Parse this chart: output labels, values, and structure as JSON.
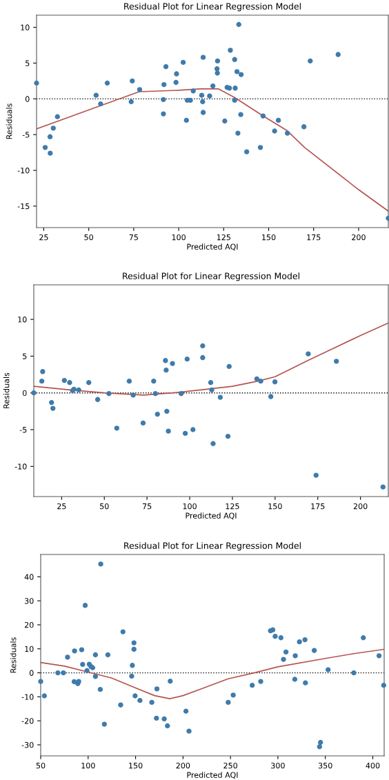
{
  "chart_data": [
    {
      "type": "scatter",
      "title": "Residual Plot for Linear Regression Model",
      "xlabel": "Predicted AQI",
      "ylabel": "Residuals",
      "xlim": [
        21,
        216.5
      ],
      "ylim": [
        -18,
        11.7
      ],
      "xticks": [
        25,
        50,
        75,
        100,
        125,
        150,
        175,
        200
      ],
      "yticks": [
        -15,
        -10,
        -5,
        0,
        5,
        10
      ],
      "ref_lines": [
        {
          "axis": "y",
          "value": 0,
          "color": "#000000",
          "line_style": "dotted"
        }
      ],
      "series": [
        {
          "marker": "circle",
          "color": "#3f7bab",
          "x": [
            21,
            25.8,
            28.6,
            28.5,
            30.3,
            32.6,
            54.1,
            56.6,
            60.3,
            74.2,
            73.6,
            78.3,
            91.8,
            92.9,
            91.5,
            91.5,
            98.5,
            98.8,
            102.5,
            104.3,
            104.8,
            106.5,
            108.1,
            113.6,
            112.8,
            113.3,
            113.6,
            117.2,
            119.0,
            121.6,
            121.3,
            121.5,
            125.6,
            126.9,
            128.2,
            128.7,
            131.1,
            131.4,
            131.1,
            132.4,
            133.4,
            134.7,
            134.5,
            132.9,
            137.8,
            145.4,
            146.9,
            153.3,
            155.4,
            160.4,
            169.6,
            173.1,
            188.6,
            216.5
          ],
          "values": [
            2.2,
            -6.8,
            -7.6,
            -5.3,
            -4.1,
            -2.5,
            0.5,
            -0.7,
            2.2,
            2.5,
            -0.4,
            1.3,
            2.0,
            4.5,
            -0.1,
            -2.1,
            2.3,
            3.5,
            5.1,
            -3.0,
            -0.2,
            -0.2,
            1.1,
            5.8,
            0.5,
            -0.4,
            -1.9,
            0.4,
            1.8,
            5.3,
            4.2,
            3.6,
            -3.1,
            1.6,
            1.5,
            6.8,
            5.5,
            1.5,
            -0.2,
            3.8,
            10.4,
            3.4,
            -2.2,
            -4.8,
            -7.4,
            -6.8,
            -2.4,
            -4.5,
            -3.0,
            -4.8,
            -3.9,
            5.3,
            6.2,
            -16.7
          ]
        },
        {
          "type": "line",
          "marker": "none",
          "color": "#b5534f",
          "x": [
            21,
            56,
            78,
            100,
            112,
            122,
            131,
            147,
            160,
            170,
            200,
            216.5
          ],
          "values": [
            -4.2,
            -1.0,
            1.0,
            1.2,
            1.4,
            1.4,
            0.2,
            -2.4,
            -4.4,
            -6.8,
            -12.7,
            -15.7
          ]
        }
      ]
    },
    {
      "type": "scatter",
      "title": "Residual Plot for Linear Regression Model",
      "xlabel": "Predicted AQI",
      "ylabel": "Residuals",
      "xlim": [
        8.7,
        216.3
      ],
      "ylim": [
        -14.1,
        14.7
      ],
      "xticks": [
        25,
        50,
        75,
        100,
        125,
        150,
        175,
        200
      ],
      "yticks": [
        -10,
        -5,
        0,
        5,
        10
      ],
      "ref_lines": [
        {
          "axis": "y",
          "value": 0,
          "color": "#000000",
          "line_style": "dotted"
        }
      ],
      "series": [
        {
          "marker": "circle",
          "color": "#3f7bab",
          "x": [
            8.7,
            13.4,
            13.9,
            19.1,
            19.9,
            26.6,
            29.7,
            31.4,
            32.2,
            35.0,
            40.9,
            46.1,
            52.7,
            57.3,
            64.6,
            66.9,
            72.7,
            78.9,
            79.9,
            81.1,
            85.8,
            86.2,
            86.6,
            87.5,
            89.9,
            95.0,
            97.4,
            98.5,
            101.9,
            107.6,
            107.6,
            112.3,
            112.9,
            113.7,
            117.9,
            123.1,
            122.4,
            139.3,
            141.6,
            147.5,
            149.9,
            169.4,
            174.0,
            185.9,
            213.2
          ],
          "values": [
            0,
            1.6,
            2.9,
            -1.3,
            -2.1,
            1.7,
            1.4,
            0.3,
            0.5,
            0.4,
            1.4,
            -0.9,
            -0.1,
            -4.8,
            1.6,
            -0.3,
            -4.1,
            1.6,
            -0.1,
            -2.9,
            4.4,
            3.1,
            -2.5,
            -5.2,
            4.0,
            -0.1,
            -5.5,
            4.6,
            -5.0,
            6.4,
            4.8,
            1.4,
            0.4,
            -6.9,
            -0.6,
            3.6,
            -5.9,
            1.9,
            1.6,
            -0.5,
            1.5,
            5.3,
            -11.2,
            4.3,
            -12.8
          ]
        },
        {
          "type": "line",
          "marker": "none",
          "color": "#b5534f",
          "x": [
            8.7,
            30,
            50,
            73,
            90,
            110,
            125,
            140,
            150,
            170,
            200,
            216.3
          ],
          "values": [
            0.9,
            0.4,
            0,
            -0.3,
            0,
            0.5,
            0.9,
            1.6,
            2.2,
            4.5,
            7.8,
            9.5
          ]
        }
      ]
    },
    {
      "type": "scatter",
      "title": "Residual Plot for Linear Regression Model",
      "xlabel": "Predicted AQI",
      "ylabel": "Residuals",
      "xlim": [
        50,
        412
      ],
      "ylim": [
        -34.6,
        49.3
      ],
      "xticks": [
        50,
        100,
        150,
        200,
        250,
        300,
        350,
        400
      ],
      "yticks": [
        -30,
        -20,
        -10,
        0,
        10,
        20,
        30,
        40
      ],
      "ref_lines": [
        {
          "axis": "y",
          "value": 0,
          "color": "#000000",
          "line_style": "dotted"
        }
      ],
      "series": [
        {
          "marker": "circle",
          "color": "#3f7bab",
          "x": [
            50,
            53.9,
            68.1,
            73.9,
            78.3,
            85.3,
            85.7,
            89.1,
            90.1,
            93.2,
            94.2,
            96.9,
            98.8,
            101.2,
            103.1,
            104.8,
            107.7,
            107.7,
            112.8,
            113.3,
            117.1,
            120.8,
            134.3,
            136.7,
            145.9,
            146.6,
            148.3,
            148.3,
            149.5,
            154.6,
            167.1,
            172.0,
            172.5,
            180.2,
            183.6,
            186.5,
            203.1,
            206.3,
            247.6,
            252.9,
            272.9,
            281.9,
            292.2,
            294.6,
            297.1,
            303.2,
            305.9,
            308.5,
            317.8,
            318.3,
            322.7,
            328.5,
            329.0,
            338.3,
            343.9,
            344.9,
            352.9,
            380,
            390,
            406.6,
            411.5
          ],
          "values": [
            -3.6,
            -9.6,
            0,
            0,
            6.5,
            -3.7,
            9.1,
            -4.5,
            -3.6,
            9.6,
            3.5,
            28.1,
            0.9,
            3.6,
            2.6,
            2.1,
            -1.5,
            7.5,
            -6.9,
            45.3,
            -21.4,
            7.5,
            -13.4,
            17.1,
            -1.4,
            3.1,
            9.8,
            12.5,
            -9.6,
            -11.5,
            -12.3,
            -18.9,
            -6.7,
            -19.2,
            -22.1,
            -3.5,
            -16.0,
            -24.3,
            -12.3,
            -9.3,
            -5.2,
            -3.6,
            17.5,
            17.9,
            15.2,
            14.6,
            5.6,
            8.7,
            -2.7,
            7.1,
            12.9,
            13.8,
            -4.2,
            9.3,
            -30.8,
            -29.0,
            1.3,
            0,
            14.6,
            7.1,
            -5.2
          ]
        },
        {
          "type": "line",
          "marker": "none",
          "color": "#b5534f",
          "x": [
            50,
            75,
            100,
            125,
            150,
            170,
            186,
            200,
            217,
            247.6,
            275,
            300,
            350,
            380,
            412
          ],
          "values": [
            4.3,
            2.8,
            0.3,
            -2.2,
            -6.3,
            -9.5,
            -10.8,
            -9.5,
            -7.0,
            -2.5,
            0,
            2.5,
            6,
            8,
            9.8
          ]
        }
      ]
    }
  ]
}
